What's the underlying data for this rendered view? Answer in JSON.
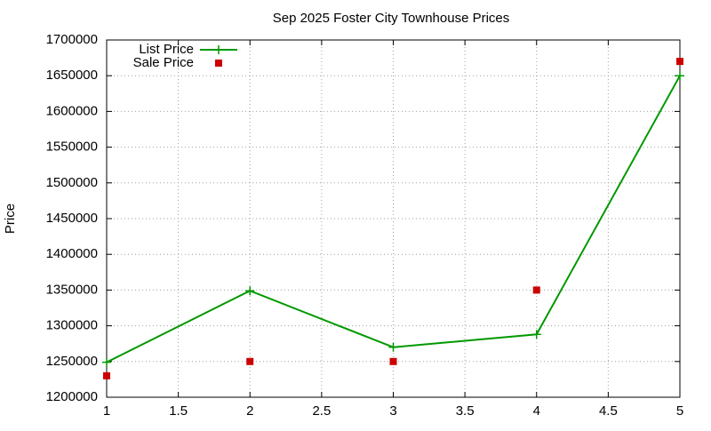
{
  "chart_data": {
    "type": "line",
    "title": "Sep 2025 Foster City Townhouse Prices",
    "y_label": "Price",
    "x": [
      1,
      2,
      3,
      4,
      5
    ],
    "series": [
      {
        "name": "List Price",
        "color": "#009900",
        "marker": "plus",
        "line": true,
        "values": [
          1249000,
          1349000,
          1270000,
          1288000,
          1650000
        ]
      },
      {
        "name": "Sale Price",
        "color": "#cc0000",
        "marker": "square",
        "line": false,
        "values": [
          1230000,
          1250000,
          1250000,
          1350000,
          1670000
        ]
      }
    ],
    "xlim": [
      1,
      5
    ],
    "xticks": [
      1,
      1.5,
      2,
      2.5,
      3,
      3.5,
      4,
      4.5,
      5
    ],
    "ylim": [
      1200000,
      1700000
    ],
    "yticks": [
      1200000,
      1250000,
      1300000,
      1350000,
      1400000,
      1450000,
      1500000,
      1550000,
      1600000,
      1650000,
      1700000
    ],
    "grid": true,
    "legend": "top-left"
  }
}
